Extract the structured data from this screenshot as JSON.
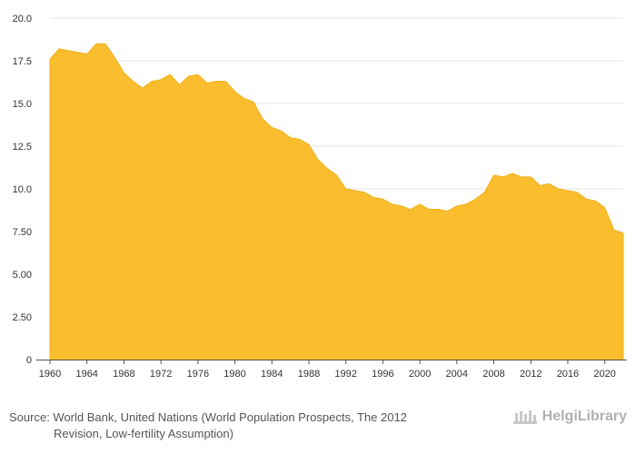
{
  "chart_data": {
    "type": "area",
    "x": [
      1960,
      1961,
      1962,
      1963,
      1964,
      1965,
      1966,
      1967,
      1968,
      1969,
      1970,
      1971,
      1972,
      1973,
      1974,
      1975,
      1976,
      1977,
      1978,
      1979,
      1980,
      1981,
      1982,
      1983,
      1984,
      1985,
      1986,
      1987,
      1988,
      1989,
      1990,
      1991,
      1992,
      1993,
      1994,
      1995,
      1996,
      1997,
      1998,
      1999,
      2000,
      2001,
      2002,
      2003,
      2004,
      2005,
      2006,
      2007,
      2008,
      2009,
      2010,
      2011,
      2012,
      2013,
      2014,
      2015,
      2016,
      2017,
      2018,
      2019,
      2020,
      2021,
      2022
    ],
    "values": [
      17.6,
      18.2,
      18.1,
      18.0,
      17.9,
      18.5,
      18.5,
      17.7,
      16.8,
      16.3,
      15.9,
      16.3,
      16.4,
      16.7,
      16.1,
      16.6,
      16.7,
      16.2,
      16.3,
      16.3,
      15.7,
      15.3,
      15.1,
      14.1,
      13.6,
      13.4,
      13.0,
      12.9,
      12.6,
      11.7,
      11.2,
      10.8,
      10.0,
      9.9,
      9.8,
      9.5,
      9.4,
      9.1,
      9.0,
      8.8,
      9.1,
      8.8,
      8.8,
      8.7,
      9.0,
      9.1,
      9.4,
      9.8,
      10.8,
      10.7,
      10.9,
      10.7,
      10.7,
      10.2,
      10.3,
      10.0,
      9.9,
      9.8,
      9.4,
      9.3,
      8.9,
      7.6,
      7.4
    ],
    "x_ticks": [
      1960,
      1964,
      1968,
      1972,
      1976,
      1980,
      1984,
      1988,
      1992,
      1996,
      2000,
      2004,
      2008,
      2012,
      2016,
      2020
    ],
    "y_ticks": [
      0,
      2.5,
      5,
      7.5,
      10,
      12.5,
      15,
      17.5,
      20
    ],
    "y_tick_labels": [
      "0",
      "2.50",
      "5.00",
      "7.50",
      "10.0",
      "12.5",
      "15.0",
      "17.5",
      "20.0"
    ],
    "ylim": [
      0,
      20
    ],
    "xlim": [
      1960,
      2022
    ],
    "title": "",
    "xlabel": "",
    "ylabel": "",
    "fill_color": "#F9BD2D",
    "grid_color": "#E6E6E6",
    "grid": true
  },
  "footer": {
    "source_line1": "Source: World Bank, United Nations (World Population Prospects, The 2012",
    "source_line2": "Revision, Low-fertility Assumption)",
    "logo_text": "HelgiLibrary"
  }
}
